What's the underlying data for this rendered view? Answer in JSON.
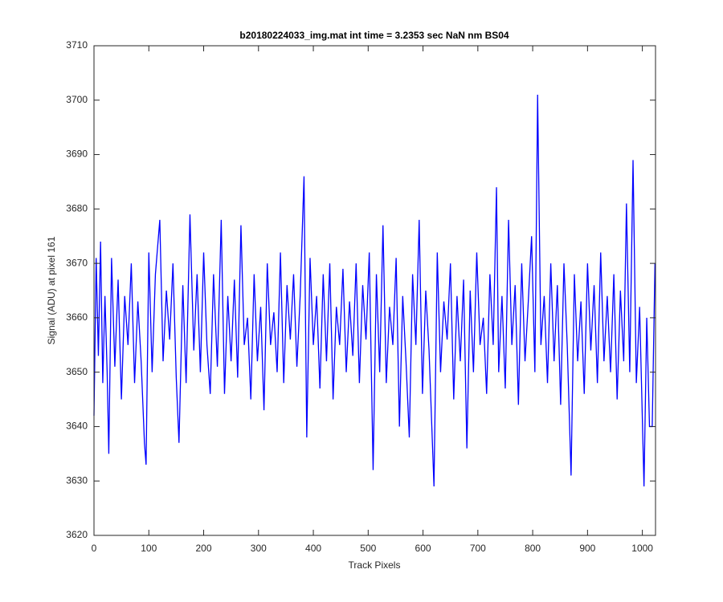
{
  "chart_data": {
    "type": "line",
    "title": "b20180224033_img.mat int time = 3.2353 sec  NaN nm BS04",
    "x_label": "Track Pixels",
    "y_label": "Signal (ADU) at pixel 161",
    "xlim": [
      0,
      1024
    ],
    "ylim": [
      3620,
      3710
    ],
    "xticks": [
      0,
      100,
      200,
      300,
      400,
      500,
      600,
      700,
      800,
      900,
      1000
    ],
    "yticks": [
      3620,
      3630,
      3640,
      3650,
      3660,
      3670,
      3680,
      3690,
      3700,
      3710
    ],
    "grid": false,
    "x": [
      0,
      4,
      8,
      12,
      16,
      20,
      24,
      27,
      32,
      38,
      44,
      50,
      56,
      62,
      68,
      74,
      80,
      86,
      92,
      95,
      100,
      106,
      112,
      120,
      126,
      132,
      138,
      144,
      150,
      155,
      162,
      168,
      175,
      182,
      188,
      194,
      200,
      206,
      212,
      218,
      225,
      232,
      238,
      244,
      250,
      256,
      262,
      268,
      274,
      280,
      286,
      292,
      298,
      304,
      310,
      316,
      322,
      328,
      334,
      340,
      346,
      352,
      358,
      364,
      370,
      376,
      383,
      388,
      394,
      400,
      406,
      412,
      418,
      424,
      430,
      436,
      442,
      448,
      454,
      460,
      466,
      472,
      478,
      484,
      490,
      496,
      502,
      509,
      515,
      521,
      527,
      533,
      539,
      545,
      551,
      557,
      563,
      569,
      575,
      581,
      587,
      593,
      599,
      605,
      611,
      620,
      626,
      632,
      638,
      644,
      650,
      656,
      662,
      668,
      674,
      680,
      686,
      692,
      698,
      704,
      710,
      716,
      722,
      728,
      734,
      738,
      744,
      750,
      756,
      762,
      768,
      774,
      780,
      786,
      792,
      798,
      804,
      809,
      815,
      821,
      827,
      833,
      839,
      845,
      851,
      857,
      863,
      870,
      876,
      882,
      888,
      894,
      900,
      906,
      912,
      918,
      924,
      930,
      936,
      942,
      948,
      954,
      960,
      966,
      971,
      977,
      983,
      989,
      995,
      1003,
      1008,
      1013,
      1018,
      1023
    ],
    "series": [
      {
        "color": "#0000ff",
        "values": [
          3642,
          3671,
          3653,
          3674,
          3648,
          3664,
          3650,
          3635,
          3671,
          3651,
          3667,
          3645,
          3664,
          3655,
          3670,
          3648,
          3663,
          3652,
          3637,
          3633,
          3672,
          3650,
          3668,
          3678,
          3652,
          3665,
          3656,
          3670,
          3649,
          3637,
          3666,
          3648,
          3679,
          3654,
          3668,
          3650,
          3672,
          3655,
          3646,
          3668,
          3651,
          3678,
          3646,
          3664,
          3652,
          3667,
          3649,
          3677,
          3655,
          3660,
          3645,
          3668,
          3652,
          3662,
          3643,
          3670,
          3655,
          3661,
          3650,
          3672,
          3648,
          3666,
          3656,
          3668,
          3651,
          3664,
          3686,
          3638,
          3671,
          3655,
          3664,
          3647,
          3668,
          3652,
          3670,
          3645,
          3662,
          3655,
          3669,
          3650,
          3663,
          3653,
          3670,
          3648,
          3666,
          3656,
          3672,
          3632,
          3668,
          3650,
          3677,
          3648,
          3662,
          3655,
          3671,
          3640,
          3664,
          3652,
          3638,
          3668,
          3655,
          3678,
          3646,
          3665,
          3654,
          3629,
          3672,
          3650,
          3663,
          3656,
          3670,
          3645,
          3664,
          3652,
          3667,
          3636,
          3665,
          3650,
          3672,
          3655,
          3660,
          3646,
          3668,
          3655,
          3684,
          3650,
          3664,
          3647,
          3678,
          3655,
          3666,
          3644,
          3670,
          3652,
          3663,
          3675,
          3650,
          3701,
          3655,
          3664,
          3648,
          3670,
          3652,
          3666,
          3644,
          3670,
          3655,
          3631,
          3668,
          3652,
          3663,
          3646,
          3670,
          3654,
          3666,
          3648,
          3672,
          3652,
          3664,
          3650,
          3668,
          3645,
          3665,
          3652,
          3681,
          3650,
          3689,
          3648,
          3662,
          3629,
          3660,
          3640,
          3640,
          3670
        ]
      }
    ]
  }
}
